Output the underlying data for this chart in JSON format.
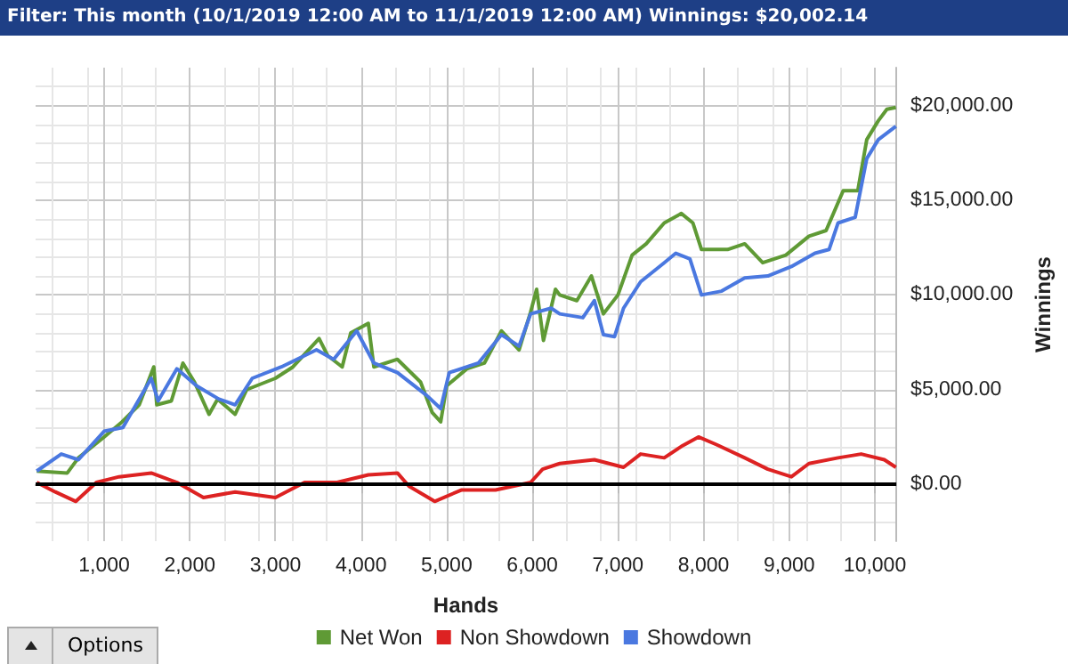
{
  "chart_data": {
    "type": "line",
    "title": "Filter: This month (10/1/2019 12:00 AM to 11/1/2019 12:00 AM) Winnings: $20,002.14",
    "xlabel": "Hands",
    "ylabel": "Winnings",
    "xlim": [
      200,
      10250
    ],
    "ylim": [
      -3000,
      22000
    ],
    "xticks": [
      {
        "value": 1000,
        "label": "1,000"
      },
      {
        "value": 2000,
        "label": "2,000"
      },
      {
        "value": 3000,
        "label": "3,000"
      },
      {
        "value": 4000,
        "label": "4,000"
      },
      {
        "value": 5000,
        "label": "5,000"
      },
      {
        "value": 6000,
        "label": "6,000"
      },
      {
        "value": 7000,
        "label": "7,000"
      },
      {
        "value": 8000,
        "label": "8,000"
      },
      {
        "value": 9000,
        "label": "9,000"
      },
      {
        "value": 10000,
        "label": "10,000"
      }
    ],
    "yticks": [
      {
        "value": 0,
        "label": "$0.00"
      },
      {
        "value": 5000,
        "label": "$5,000.00"
      },
      {
        "value": 10000,
        "label": "$10,000.00"
      },
      {
        "value": 15000,
        "label": "$15,000.00"
      },
      {
        "value": 20000,
        "label": "$20,000.00"
      }
    ],
    "grid": true,
    "legend": "bottom",
    "marker": "none",
    "line_style": "solid",
    "ref_lines": [
      {
        "axis": "y",
        "value": 0,
        "label": null,
        "color": "#000000"
      }
    ],
    "annotations": [
      "Options"
    ],
    "series": [
      {
        "name": "Net Won",
        "color": "#5f9a35",
        "x": [
          213,
          570,
          700,
          1000,
          1210,
          1410,
          1580,
          1615,
          1785,
          1920,
          2055,
          2225,
          2325,
          2530,
          2665,
          3000,
          3205,
          3510,
          3610,
          3780,
          3880,
          4085,
          4150,
          4425,
          4695,
          4830,
          4930,
          5000,
          5235,
          5440,
          5640,
          5845,
          5980,
          6050,
          6130,
          6270,
          6320,
          6520,
          6690,
          6830,
          7000,
          7165,
          7330,
          7540,
          7740,
          7875,
          7975,
          8280,
          8480,
          8690,
          8960,
          9230,
          9430,
          9630,
          9800,
          9905,
          10040,
          10140,
          10245
        ],
        "values": [
          700,
          600,
          1400,
          2500,
          3300,
          4200,
          6200,
          4200,
          4400,
          6400,
          5400,
          3700,
          4500,
          3700,
          5000,
          5600,
          6200,
          7700,
          6800,
          6200,
          8000,
          8500,
          6200,
          6600,
          5400,
          3800,
          3300,
          5200,
          6100,
          6400,
          8100,
          7100,
          9100,
          10300,
          7600,
          10300,
          10000,
          9700,
          11000,
          9000,
          10000,
          12100,
          12700,
          13800,
          14300,
          13800,
          12400,
          12400,
          12700,
          11700,
          12100,
          13100,
          13400,
          15500,
          15500,
          18200,
          19200,
          19800,
          19900
        ]
      },
      {
        "name": "Non Showdown",
        "color": "#dd2222",
        "x": [
          213,
          430,
          670,
          910,
          1175,
          1550,
          1850,
          2160,
          2530,
          3000,
          3340,
          3720,
          4085,
          4425,
          4560,
          4860,
          5170,
          5570,
          5980,
          6120,
          6320,
          6725,
          7065,
          7265,
          7540,
          7740,
          7940,
          8150,
          8480,
          8750,
          9025,
          9230,
          9570,
          9840,
          10110,
          10245
        ],
        "values": [
          100,
          -400,
          -900,
          100,
          400,
          600,
          100,
          -700,
          -400,
          -700,
          100,
          100,
          500,
          600,
          -100,
          -900,
          -300,
          -300,
          100,
          800,
          1100,
          1300,
          900,
          1600,
          1400,
          2000,
          2500,
          2100,
          1400,
          800,
          400,
          1100,
          1400,
          1600,
          1300,
          900
        ]
      },
      {
        "name": "Showdown",
        "color": "#4a78e0",
        "x": [
          213,
          500,
          700,
          1000,
          1220,
          1550,
          1630,
          1850,
          2080,
          2340,
          2530,
          2730,
          3070,
          3480,
          3680,
          3950,
          4150,
          4425,
          4765,
          4930,
          5030,
          5370,
          5640,
          5845,
          5980,
          6220,
          6320,
          6590,
          6725,
          6830,
          6960,
          7065,
          7265,
          7540,
          7675,
          7840,
          7975,
          8210,
          8480,
          8750,
          9025,
          9300,
          9465,
          9570,
          9770,
          9905,
          10040,
          10245
        ],
        "values": [
          700,
          1600,
          1300,
          2800,
          3000,
          5600,
          4400,
          6100,
          5200,
          4500,
          4200,
          5600,
          6200,
          7100,
          6600,
          8100,
          6400,
          5900,
          4700,
          4000,
          5900,
          6400,
          7900,
          7300,
          9000,
          9300,
          9000,
          8800,
          9700,
          7900,
          7800,
          9300,
          10700,
          11700,
          12200,
          11900,
          10000,
          10200,
          10900,
          11000,
          11500,
          12200,
          12400,
          13800,
          14100,
          17200,
          18200,
          18900
        ]
      }
    ]
  }
}
